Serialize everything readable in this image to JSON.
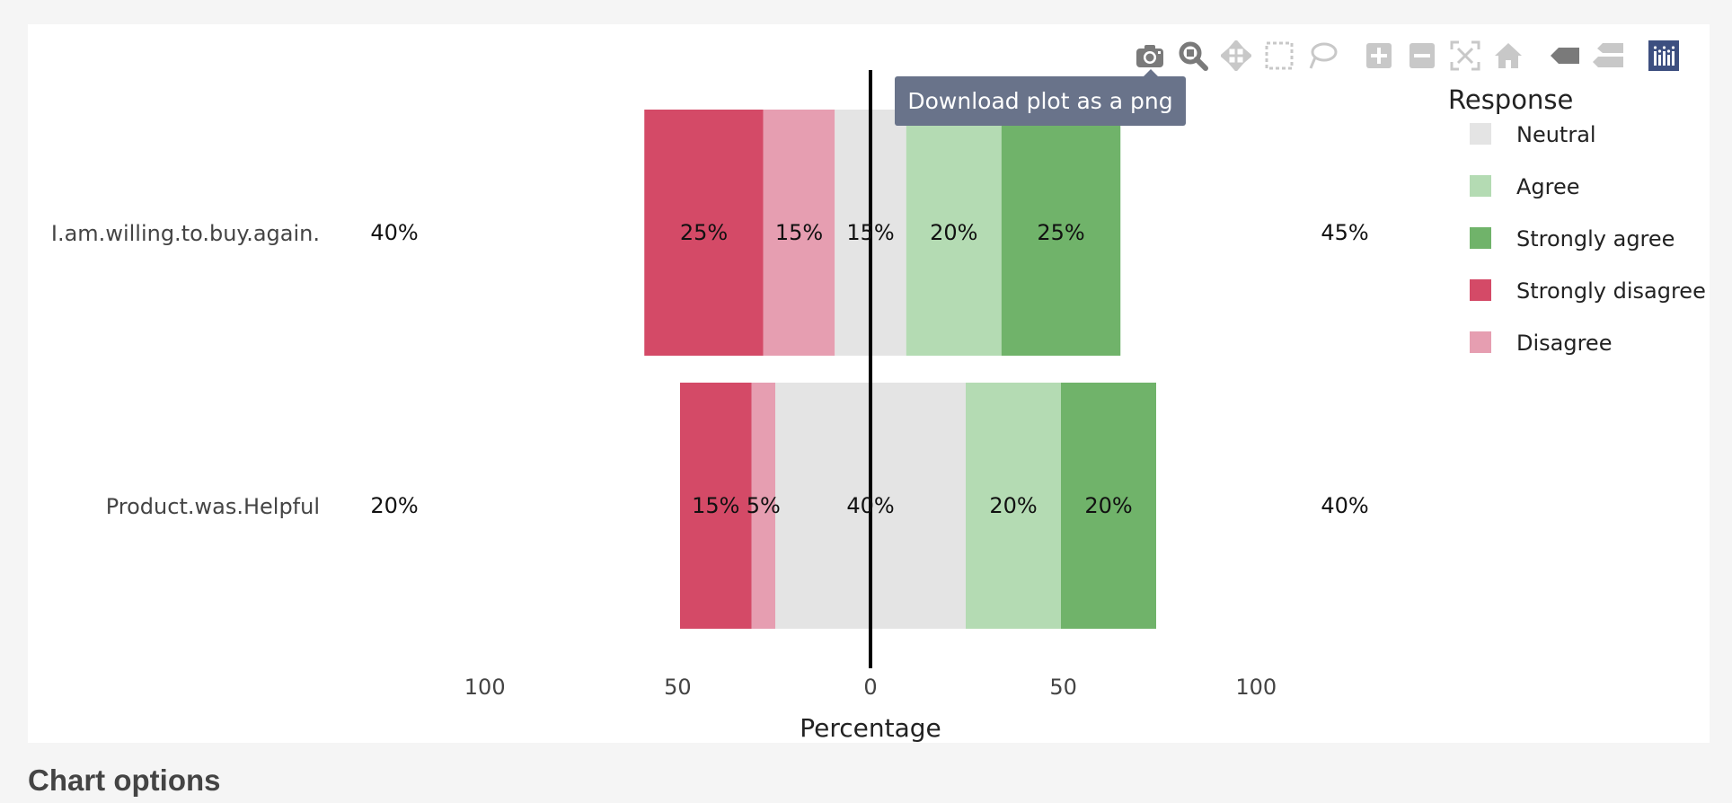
{
  "chart_data": {
    "type": "bar",
    "orientation": "horizontal-diverging",
    "categories": [
      "I.am.willing.to.buy.again.",
      "Product.was.Helpful"
    ],
    "series": [
      {
        "name": "Neutral",
        "color": "#e4e4e4",
        "values": [
          15,
          40
        ]
      },
      {
        "name": "Agree",
        "color": "#b4dbb3",
        "values": [
          20,
          20
        ]
      },
      {
        "name": "Strongly agree",
        "color": "#70b36a",
        "values": [
          25,
          20
        ]
      },
      {
        "name": "Strongly disagree",
        "color": "#d44a67",
        "values": [
          25,
          15
        ]
      },
      {
        "name": "Disagree",
        "color": "#e69eb1",
        "values": [
          15,
          5
        ]
      }
    ],
    "bar_labels": [
      [
        "25%",
        "15%",
        "15%",
        "20%",
        "25%"
      ],
      [
        "15%",
        "5%",
        "40%",
        "20%",
        "20%"
      ]
    ],
    "left_totals": [
      "40%",
      "20%"
    ],
    "right_totals": [
      "45%",
      "40%"
    ],
    "xticks": [
      "100",
      "50",
      "0",
      "50",
      "100"
    ],
    "xlim": [
      -100,
      100
    ],
    "xlabel": "Percentage",
    "legend_title": "Response",
    "legend_position": "right"
  },
  "modebar": {
    "icons": [
      "camera-icon",
      "zoom-icon",
      "pan-icon",
      "box-select-icon",
      "lasso-icon",
      "zoom-in-icon",
      "zoom-out-icon",
      "autoscale-icon",
      "reset-axes-icon",
      "hover-closest-icon",
      "hover-compare-icon",
      "plotly-logo-icon"
    ]
  },
  "tooltip": {
    "text": "Download plot as a png"
  },
  "section": {
    "title": "Chart options"
  }
}
